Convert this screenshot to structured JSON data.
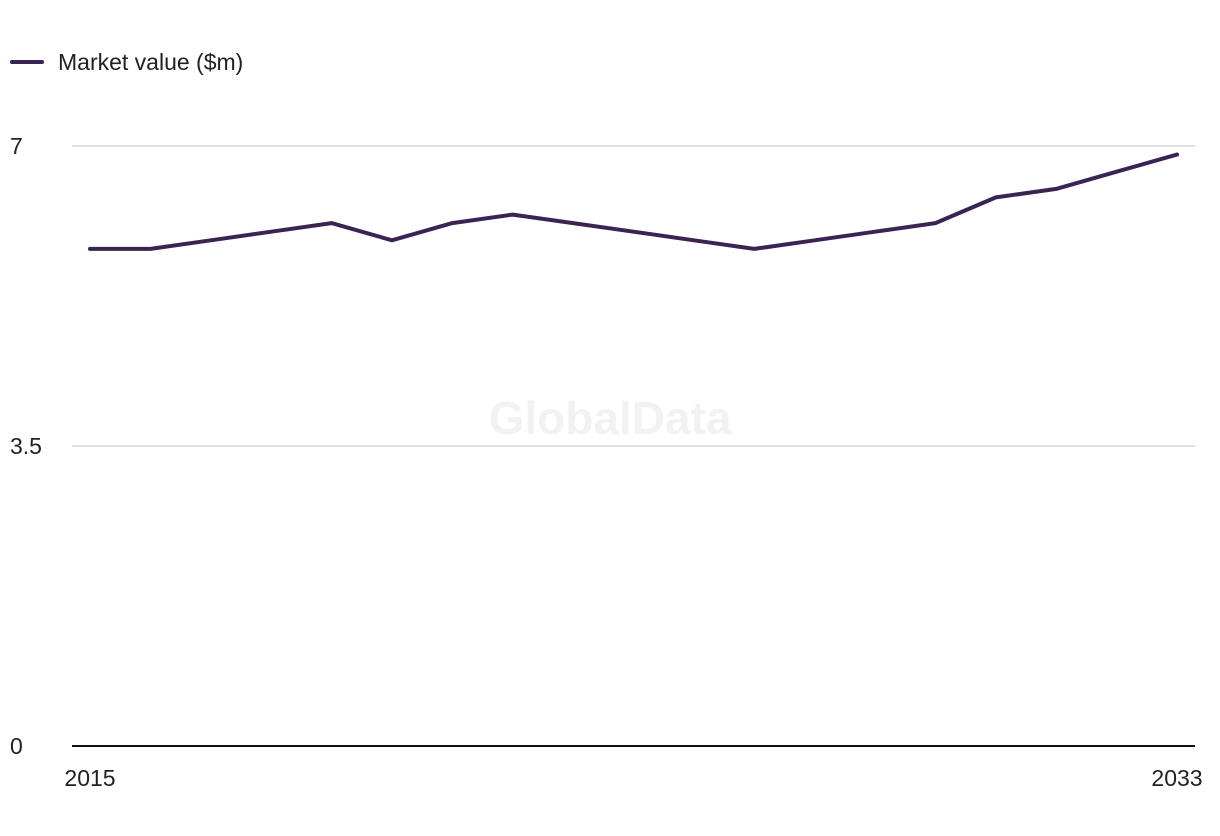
{
  "chart_data": {
    "type": "line",
    "x": [
      2015,
      2016,
      2017,
      2018,
      2019,
      2020,
      2021,
      2022,
      2023,
      2024,
      2025,
      2026,
      2027,
      2028,
      2029,
      2030,
      2031,
      2032,
      2033
    ],
    "series": [
      {
        "name": "Market value ($m)",
        "color": "#3b2454",
        "values": [
          5.8,
          5.8,
          5.9,
          6.0,
          6.1,
          5.9,
          6.1,
          6.2,
          6.1,
          6.0,
          5.9,
          5.8,
          5.9,
          6.0,
          6.1,
          6.4,
          6.5,
          6.7,
          6.9
        ]
      }
    ],
    "ylim": [
      0,
      7
    ],
    "yticks": [
      "0",
      "3.5",
      "7"
    ],
    "xticks": [
      "2015",
      "2033"
    ],
    "grid": true,
    "legend": "top-left",
    "xlabel": "",
    "ylabel": "",
    "title": ""
  },
  "watermark": "GlobalData"
}
